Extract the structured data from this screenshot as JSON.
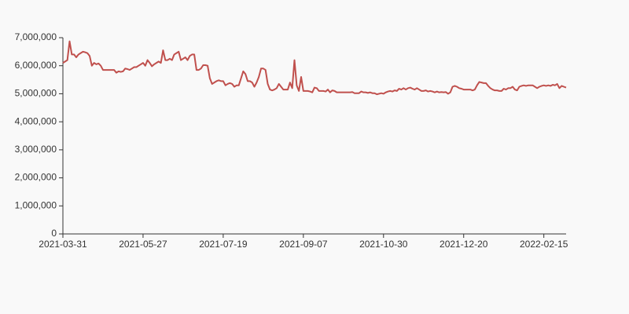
{
  "chart_data": {
    "type": "line",
    "categories": [
      "2021-03-31",
      null,
      null,
      null,
      null,
      null,
      null,
      null,
      null,
      null,
      null,
      null,
      null,
      null,
      null,
      null,
      null,
      null,
      null,
      null,
      null,
      null,
      null,
      null,
      null,
      null,
      null,
      null,
      null,
      null,
      null,
      null,
      null,
      null,
      null,
      null,
      "2021-05-27",
      null,
      null,
      null,
      null,
      null,
      null,
      null,
      null,
      null,
      null,
      null,
      null,
      null,
      null,
      null,
      null,
      null,
      null,
      null,
      null,
      null,
      null,
      null,
      null,
      null,
      null,
      null,
      null,
      null,
      null,
      null,
      null,
      null,
      null,
      null,
      "2021-07-19",
      null,
      null,
      null,
      null,
      null,
      null,
      null,
      null,
      null,
      null,
      null,
      null,
      null,
      null,
      null,
      null,
      null,
      null,
      null,
      null,
      null,
      null,
      null,
      null,
      null,
      null,
      null,
      null,
      null,
      null,
      null,
      null,
      null,
      null,
      null,
      "2021-09-07",
      null,
      null,
      null,
      null,
      null,
      null,
      null,
      null,
      null,
      null,
      null,
      null,
      null,
      null,
      null,
      null,
      null,
      null,
      null,
      null,
      null,
      null,
      null,
      null,
      null,
      null,
      null,
      null,
      null,
      null,
      null,
      null,
      null,
      null,
      null,
      "2021-10-30",
      null,
      null,
      null,
      null,
      null,
      null,
      null,
      null,
      null,
      null,
      null,
      null,
      null,
      null,
      null,
      null,
      null,
      null,
      null,
      null,
      null,
      null,
      null,
      null,
      null,
      null,
      null,
      null,
      null,
      null,
      null,
      null,
      null,
      null,
      null,
      "2021-12-20",
      null,
      null,
      null,
      null,
      null,
      null,
      null,
      null,
      null,
      null,
      null,
      null,
      null,
      null,
      null,
      null,
      null,
      null,
      null,
      null,
      null,
      null,
      null,
      null,
      null,
      null,
      null,
      null,
      null,
      null,
      null,
      null,
      null,
      null,
      null,
      "2022-02-15",
      null,
      null,
      null,
      null,
      null,
      null,
      null,
      null,
      null,
      null
    ],
    "values": [
      6100000,
      6150000,
      6200000,
      6870000,
      6400000,
      6400000,
      6300000,
      6400000,
      6450000,
      6500000,
      6480000,
      6450000,
      6350000,
      6000000,
      6100000,
      6050000,
      6080000,
      6000000,
      5850000,
      5850000,
      5850000,
      5850000,
      5850000,
      5850000,
      5750000,
      5800000,
      5780000,
      5800000,
      5900000,
      5880000,
      5850000,
      5900000,
      5950000,
      5950000,
      6000000,
      6050000,
      6100000,
      6000000,
      6200000,
      6100000,
      5980000,
      6050000,
      6100000,
      6150000,
      6100000,
      6550000,
      6200000,
      6200000,
      6250000,
      6200000,
      6400000,
      6450000,
      6500000,
      6200000,
      6250000,
      6300000,
      6200000,
      6350000,
      6400000,
      6400000,
      5850000,
      5850000,
      5900000,
      6020000,
      6020000,
      6000000,
      5550000,
      5350000,
      5400000,
      5450000,
      5480000,
      5450000,
      5450000,
      5300000,
      5350000,
      5380000,
      5350000,
      5250000,
      5300000,
      5300000,
      5550000,
      5800000,
      5700000,
      5450000,
      5450000,
      5400000,
      5250000,
      5400000,
      5600000,
      5900000,
      5900000,
      5850000,
      5350000,
      5150000,
      5120000,
      5150000,
      5200000,
      5350000,
      5250000,
      5150000,
      5150000,
      5150000,
      5400000,
      5200000,
      6200000,
      5300000,
      5100000,
      5600000,
      5100000,
      5100000,
      5100000,
      5080000,
      5050000,
      5220000,
      5200000,
      5100000,
      5100000,
      5100000,
      5080000,
      5150000,
      5050000,
      5120000,
      5100000,
      5050000,
      5050000,
      5050000,
      5050000,
      5050000,
      5050000,
      5050000,
      5060000,
      5020000,
      5020000,
      5020000,
      5080000,
      5050000,
      5050000,
      5030000,
      5050000,
      5020000,
      5020000,
      4980000,
      5000000,
      5020000,
      5000000,
      5050000,
      5080000,
      5100000,
      5080000,
      5120000,
      5100000,
      5180000,
      5150000,
      5200000,
      5150000,
      5200000,
      5220000,
      5180000,
      5150000,
      5200000,
      5150000,
      5100000,
      5100000,
      5120000,
      5080000,
      5100000,
      5080000,
      5050000,
      5080000,
      5050000,
      5060000,
      5050000,
      5060000,
      5000000,
      5050000,
      5250000,
      5280000,
      5250000,
      5200000,
      5180000,
      5150000,
      5150000,
      5150000,
      5150000,
      5120000,
      5150000,
      5300000,
      5420000,
      5400000,
      5380000,
      5380000,
      5280000,
      5200000,
      5150000,
      5120000,
      5120000,
      5100000,
      5100000,
      5180000,
      5150000,
      5200000,
      5200000,
      5250000,
      5150000,
      5120000,
      5250000,
      5280000,
      5300000,
      5280000,
      5300000,
      5300000,
      5300000,
      5250000,
      5200000,
      5250000,
      5280000,
      5300000,
      5280000,
      5300000,
      5280000,
      5320000,
      5300000,
      5350000,
      5200000,
      5280000,
      5250000,
      5220000
    ],
    "color": "#c0504d",
    "ylim": [
      0,
      7000000
    ],
    "yticks": [
      0,
      {
        "value": 1000000,
        "label": "1,000,000"
      },
      {
        "value": 2000000,
        "label": "2,000,000"
      },
      {
        "value": 3000000,
        "label": "3,000,000"
      },
      {
        "value": 4000000,
        "label": "4,000,000"
      },
      {
        "value": 5000000,
        "label": "5,000,000"
      },
      {
        "value": 6000000,
        "label": "6,000,000"
      },
      {
        "value": 7000000,
        "label": "7,000,000"
      }
    ]
  }
}
